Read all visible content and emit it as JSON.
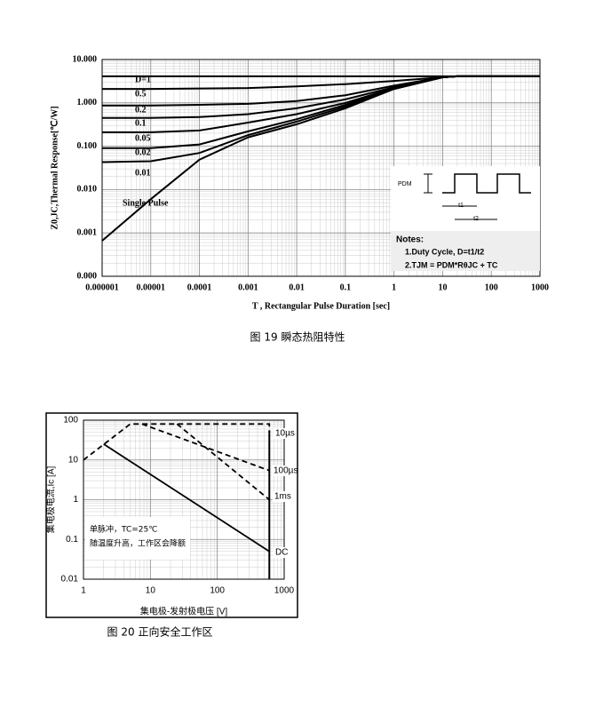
{
  "chart_data": [
    {
      "type": "line",
      "xscale": "log",
      "yscale": "log",
      "grid": true,
      "y_label": "Z0,JC,Thermal Response[℃/W]",
      "x_label": "T , Rectangular Pulse Duration [sec]",
      "caption": "图 19 瞬态热阻特性",
      "xlim": [
        1e-06,
        1000
      ],
      "xticks": [
        1e-06,
        1e-05,
        0.0001,
        0.001,
        0.01,
        0.1,
        1,
        10,
        100,
        1000
      ],
      "ylim": [
        0.0001,
        10
      ],
      "yticks": [
        {
          "value": 10,
          "label": "10.000"
        },
        {
          "value": 1,
          "label": "1.000"
        },
        {
          "value": 0.1,
          "label": "0.100"
        },
        {
          "value": 0.01,
          "label": "0.010"
        },
        {
          "value": 0.001,
          "label": "0.001"
        },
        {
          "value": 0.0001,
          "label": "0.000"
        }
      ],
      "x": [
        1e-06,
        1e-05,
        0.0001,
        0.001,
        0.01,
        0.1,
        1,
        10,
        20,
        100,
        1000
      ],
      "series": [
        {
          "name": "D=1",
          "color": "#000000",
          "values": [
            4.1,
            4.1,
            4.1,
            4.1,
            4.1,
            4.1,
            4.1,
            4.1,
            4.1,
            4.1,
            4.1
          ]
        },
        {
          "name": "0.5",
          "color": "#000000",
          "values": [
            2.1,
            2.1,
            2.15,
            2.2,
            2.4,
            2.7,
            3.2,
            3.9,
            4.1,
            4.1,
            4.1
          ]
        },
        {
          "name": "0.2",
          "color": "#000000",
          "values": [
            0.87,
            0.87,
            0.9,
            0.95,
            1.1,
            1.5,
            2.5,
            3.9,
            4.1,
            4.1,
            4.1
          ]
        },
        {
          "name": "0.1",
          "color": "#000000",
          "values": [
            0.45,
            0.45,
            0.47,
            0.55,
            0.75,
            1.2,
            2.3,
            3.9,
            4.1,
            4.1,
            4.1
          ]
        },
        {
          "name": "0.05",
          "color": "#000000",
          "values": [
            0.21,
            0.21,
            0.23,
            0.35,
            0.55,
            1.0,
            2.2,
            3.9,
            4.1,
            4.1,
            4.1
          ]
        },
        {
          "name": "0.02",
          "color": "#000000",
          "values": [
            0.09,
            0.09,
            0.11,
            0.22,
            0.42,
            0.9,
            2.15,
            3.9,
            4.1,
            4.1,
            4.1
          ]
        },
        {
          "name": "0.01",
          "color": "#000000",
          "values": [
            0.043,
            0.045,
            0.07,
            0.18,
            0.37,
            0.82,
            2.1,
            3.9,
            4.1,
            4.1,
            4.1
          ]
        },
        {
          "name": "Single Pulse",
          "color": "#000000",
          "values": [
            0.00066,
            0.006,
            0.049,
            0.16,
            0.32,
            0.75,
            2.1,
            3.9,
            4.1,
            4.1,
            4.1
          ]
        }
      ],
      "notes": {
        "pdm": "PDM",
        "t1": "t1",
        "t2": "t2",
        "title": "Notes:",
        "lines": [
          "1.Duty  Cycle, D=t1/t2",
          "2.TJM = PDM*RθJC + TC"
        ]
      }
    },
    {
      "type": "line",
      "xscale": "log",
      "yscale": "log",
      "grid": true,
      "y_label": "集电极电流,Ic [A]",
      "x_label": "集电极-发射极电压 [V]",
      "caption": "图 20 正向安全工作区",
      "xlim": [
        1,
        1000
      ],
      "xticks": [
        1,
        10,
        100,
        1000
      ],
      "ylim": [
        0.01,
        100
      ],
      "yticks": [
        100,
        10,
        1,
        0.1,
        0.01
      ],
      "vline": 600,
      "series": [
        {
          "name": "10µs",
          "color": "#000000",
          "linestyle": "dashed",
          "x": [
            1,
            5,
            600,
            600
          ],
          "values": [
            10,
            80,
            80,
            50
          ]
        },
        {
          "name": "100µs",
          "color": "#000000",
          "linestyle": "dashed",
          "x": [
            7.5,
            600
          ],
          "values": [
            80,
            5.4
          ]
        },
        {
          "name": "1ms",
          "color": "#000000",
          "linestyle": "dashed",
          "x": [
            25,
            600
          ],
          "values": [
            80,
            1.0
          ]
        },
        {
          "name": "DC",
          "color": "#000000",
          "linestyle": "solid",
          "x": [
            2,
            600
          ],
          "values": [
            25,
            0.05
          ]
        }
      ],
      "notes": {
        "lines": [
          "单脉冲，TC=25℃",
          "随温度升高，工作区会降额"
        ]
      }
    }
  ]
}
